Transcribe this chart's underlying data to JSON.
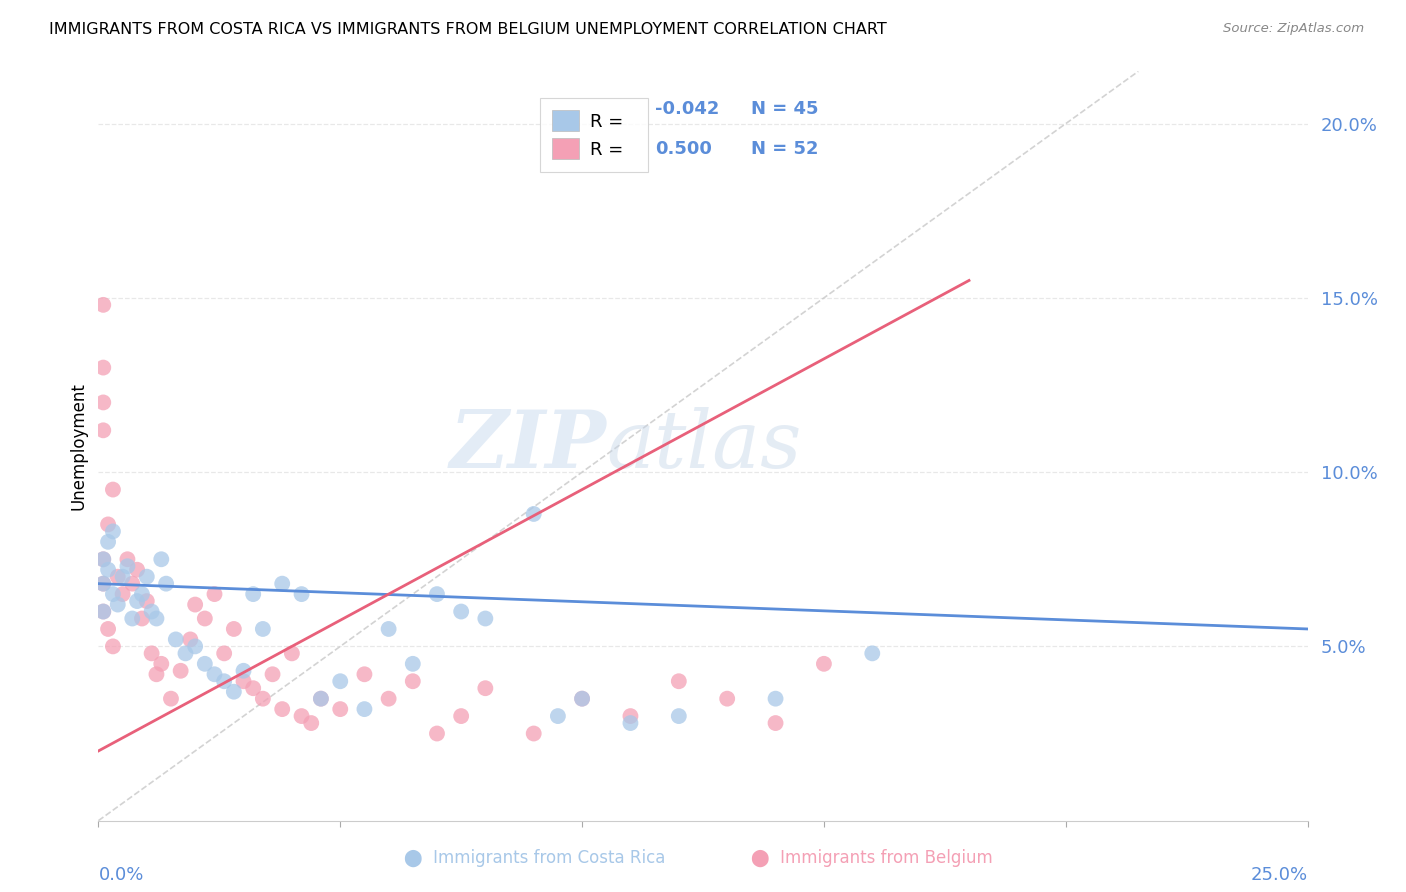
{
  "title": "IMMIGRANTS FROM COSTA RICA VS IMMIGRANTS FROM BELGIUM UNEMPLOYMENT CORRELATION CHART",
  "source": "Source: ZipAtlas.com",
  "ylabel": "Unemployment",
  "ytick_labels": [
    "20.0%",
    "15.0%",
    "10.0%",
    "5.0%"
  ],
  "ytick_values": [
    0.2,
    0.15,
    0.1,
    0.05
  ],
  "xmin": 0.0,
  "xmax": 0.25,
  "ymin": 0.0,
  "ymax": 0.215,
  "blue_color": "#a8c8e8",
  "pink_color": "#f4a0b5",
  "blue_line_color": "#5b8dd9",
  "pink_line_color": "#e8607a",
  "diag_line_color": "#c8c8c8",
  "grid_color": "#e8e8e8",
  "axis_color": "#5b8dd9",
  "legend_box_color_blue": "#a8c8e8",
  "legend_box_color_pink": "#f4a0b5",
  "costa_rica_x": [
    0.001,
    0.002,
    0.003,
    0.004,
    0.005,
    0.006,
    0.007,
    0.008,
    0.009,
    0.01,
    0.011,
    0.012,
    0.013,
    0.014,
    0.016,
    0.018,
    0.02,
    0.022,
    0.024,
    0.026,
    0.028,
    0.03,
    0.032,
    0.034,
    0.038,
    0.042,
    0.046,
    0.05,
    0.055,
    0.06,
    0.065,
    0.07,
    0.075,
    0.08,
    0.09,
    0.095,
    0.1,
    0.11,
    0.12,
    0.14,
    0.16,
    0.001,
    0.002,
    0.003,
    0.001
  ],
  "costa_rica_y": [
    0.068,
    0.072,
    0.065,
    0.062,
    0.07,
    0.073,
    0.058,
    0.063,
    0.065,
    0.07,
    0.06,
    0.058,
    0.075,
    0.068,
    0.052,
    0.048,
    0.05,
    0.045,
    0.042,
    0.04,
    0.037,
    0.043,
    0.065,
    0.055,
    0.068,
    0.065,
    0.035,
    0.04,
    0.032,
    0.055,
    0.045,
    0.065,
    0.06,
    0.058,
    0.088,
    0.03,
    0.035,
    0.028,
    0.03,
    0.035,
    0.048,
    0.075,
    0.08,
    0.083,
    0.06
  ],
  "belgium_x": [
    0.001,
    0.001,
    0.001,
    0.001,
    0.002,
    0.003,
    0.004,
    0.005,
    0.006,
    0.007,
    0.008,
    0.009,
    0.01,
    0.011,
    0.012,
    0.013,
    0.015,
    0.017,
    0.019,
    0.02,
    0.022,
    0.024,
    0.026,
    0.028,
    0.03,
    0.032,
    0.034,
    0.036,
    0.038,
    0.04,
    0.042,
    0.044,
    0.046,
    0.05,
    0.055,
    0.06,
    0.065,
    0.07,
    0.075,
    0.08,
    0.09,
    0.1,
    0.11,
    0.12,
    0.13,
    0.14,
    0.15,
    0.001,
    0.001,
    0.001,
    0.002,
    0.003
  ],
  "belgium_y": [
    0.06,
    0.148,
    0.13,
    0.068,
    0.055,
    0.05,
    0.07,
    0.065,
    0.075,
    0.068,
    0.072,
    0.058,
    0.063,
    0.048,
    0.042,
    0.045,
    0.035,
    0.043,
    0.052,
    0.062,
    0.058,
    0.065,
    0.048,
    0.055,
    0.04,
    0.038,
    0.035,
    0.042,
    0.032,
    0.048,
    0.03,
    0.028,
    0.035,
    0.032,
    0.042,
    0.035,
    0.04,
    0.025,
    0.03,
    0.038,
    0.025,
    0.035,
    0.03,
    0.04,
    0.035,
    0.028,
    0.045,
    0.12,
    0.112,
    0.075,
    0.085,
    0.095
  ]
}
